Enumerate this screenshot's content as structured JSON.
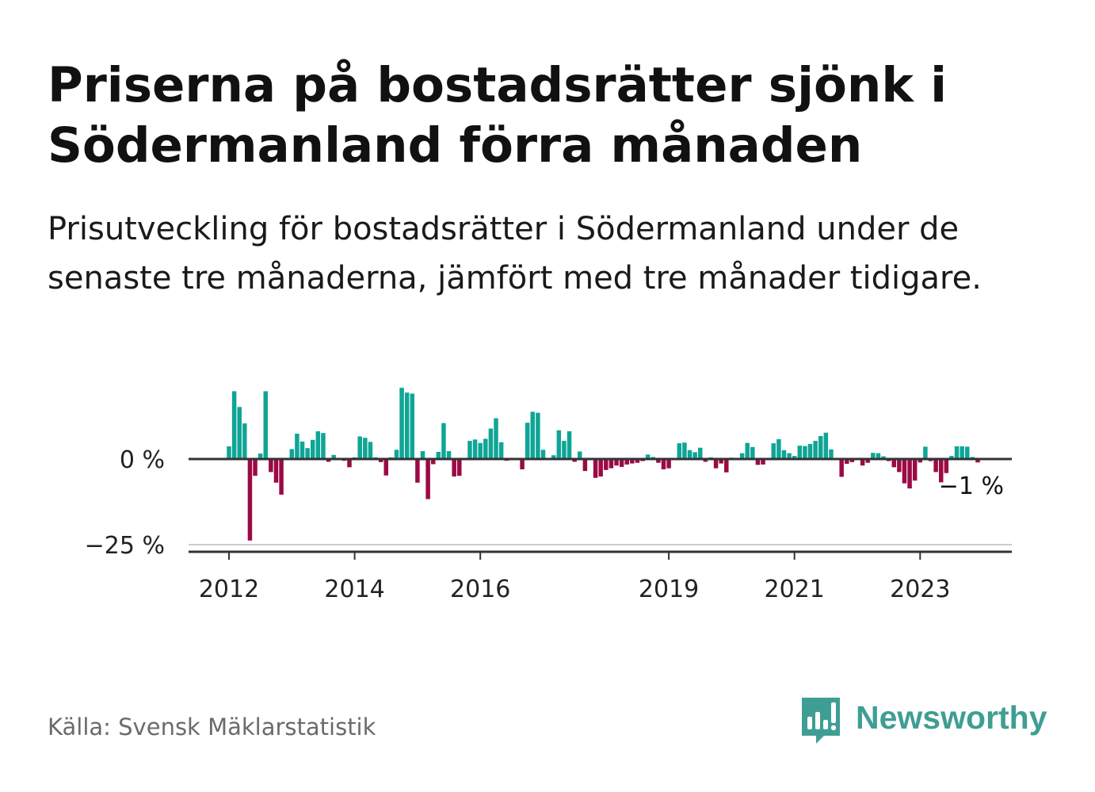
{
  "title": "Priserna på bostadsrätter sjönk i Södermanland förra månaden",
  "subtitle": "Prisutveckling för bostadsrätter i Södermanland under de senaste tre månaderna, jämfört med tre månader tidigare.",
  "source": "Källa: Svensk Mäklarstatistik",
  "brand": {
    "name": "Newsworthy",
    "icon": "newsworthy-logo-icon",
    "color": "#3f9e93"
  },
  "chart_data": {
    "type": "bar",
    "ylim": [
      -27,
      22
    ],
    "y_ticks": [
      {
        "value": 0,
        "label": "0 %"
      },
      {
        "value": -25,
        "label": "−25 %"
      }
    ],
    "x_ticks": [
      {
        "value": 2012.0,
        "label": "2012"
      },
      {
        "value": 2014.0,
        "label": "2014"
      },
      {
        "value": 2016.0,
        "label": "2016"
      },
      {
        "value": 2019.0,
        "label": "2019"
      },
      {
        "value": 2021.0,
        "label": "2021"
      },
      {
        "value": 2023.0,
        "label": "2023"
      }
    ],
    "x_start": 2012.0,
    "positive_color": "#0fa596",
    "negative_color": "#9b0a45",
    "last_value_label": "−1 %",
    "values": [
      3.7,
      19.8,
      15.2,
      10.4,
      -23.8,
      -4.9,
      1.6,
      19.8,
      -3.8,
      -6.9,
      -10.4,
      0.0,
      2.9,
      7.4,
      5.1,
      3.2,
      5.6,
      8.1,
      7.6,
      -0.8,
      1.2,
      0.0,
      -0.5,
      -2.4,
      0.5,
      6.6,
      6.2,
      5.0,
      0.5,
      -0.9,
      -4.8,
      0.5,
      2.7,
      20.8,
      19.4,
      19.1,
      -6.9,
      2.3,
      -11.7,
      -1.5,
      2.1,
      10.5,
      2.3,
      -5.1,
      -4.9,
      0.3,
      5.3,
      5.7,
      4.7,
      5.9,
      8.9,
      11.9,
      4.9,
      -0.5,
      0.0,
      0.0,
      -3.0,
      10.6,
      13.8,
      13.5,
      2.7,
      0.0,
      1.1,
      8.4,
      5.3,
      8.1,
      -0.8,
      2.2,
      -3.5,
      0.0,
      -5.5,
      -5.1,
      -3.2,
      -2.7,
      -1.9,
      -2.3,
      -1.6,
      -1.3,
      -1.1,
      -0.6,
      1.3,
      0.6,
      -1.1,
      -3.0,
      -2.7,
      0.0,
      4.6,
      4.8,
      2.6,
      2.0,
      3.3,
      -0.8,
      0.5,
      -2.7,
      -1.3,
      -3.9,
      0.4,
      0.2,
      1.7,
      4.7,
      3.5,
      -1.7,
      -1.6,
      0.0,
      4.6,
      5.8,
      2.6,
      1.7,
      0.9,
      3.9,
      3.8,
      4.4,
      5.3,
      6.7,
      7.7,
      2.8,
      0.0,
      -5.2,
      -1.4,
      -0.9,
      0.3,
      -1.9,
      -1.1,
      1.8,
      1.7,
      0.8,
      -0.6,
      -2.4,
      -3.8,
      -7.1,
      -8.6,
      -6.3,
      -1.0,
      3.6,
      -0.6,
      -3.8,
      -6.8,
      -4.1,
      0.9,
      3.7,
      3.7,
      3.6,
      0.6,
      -1.0
    ]
  }
}
